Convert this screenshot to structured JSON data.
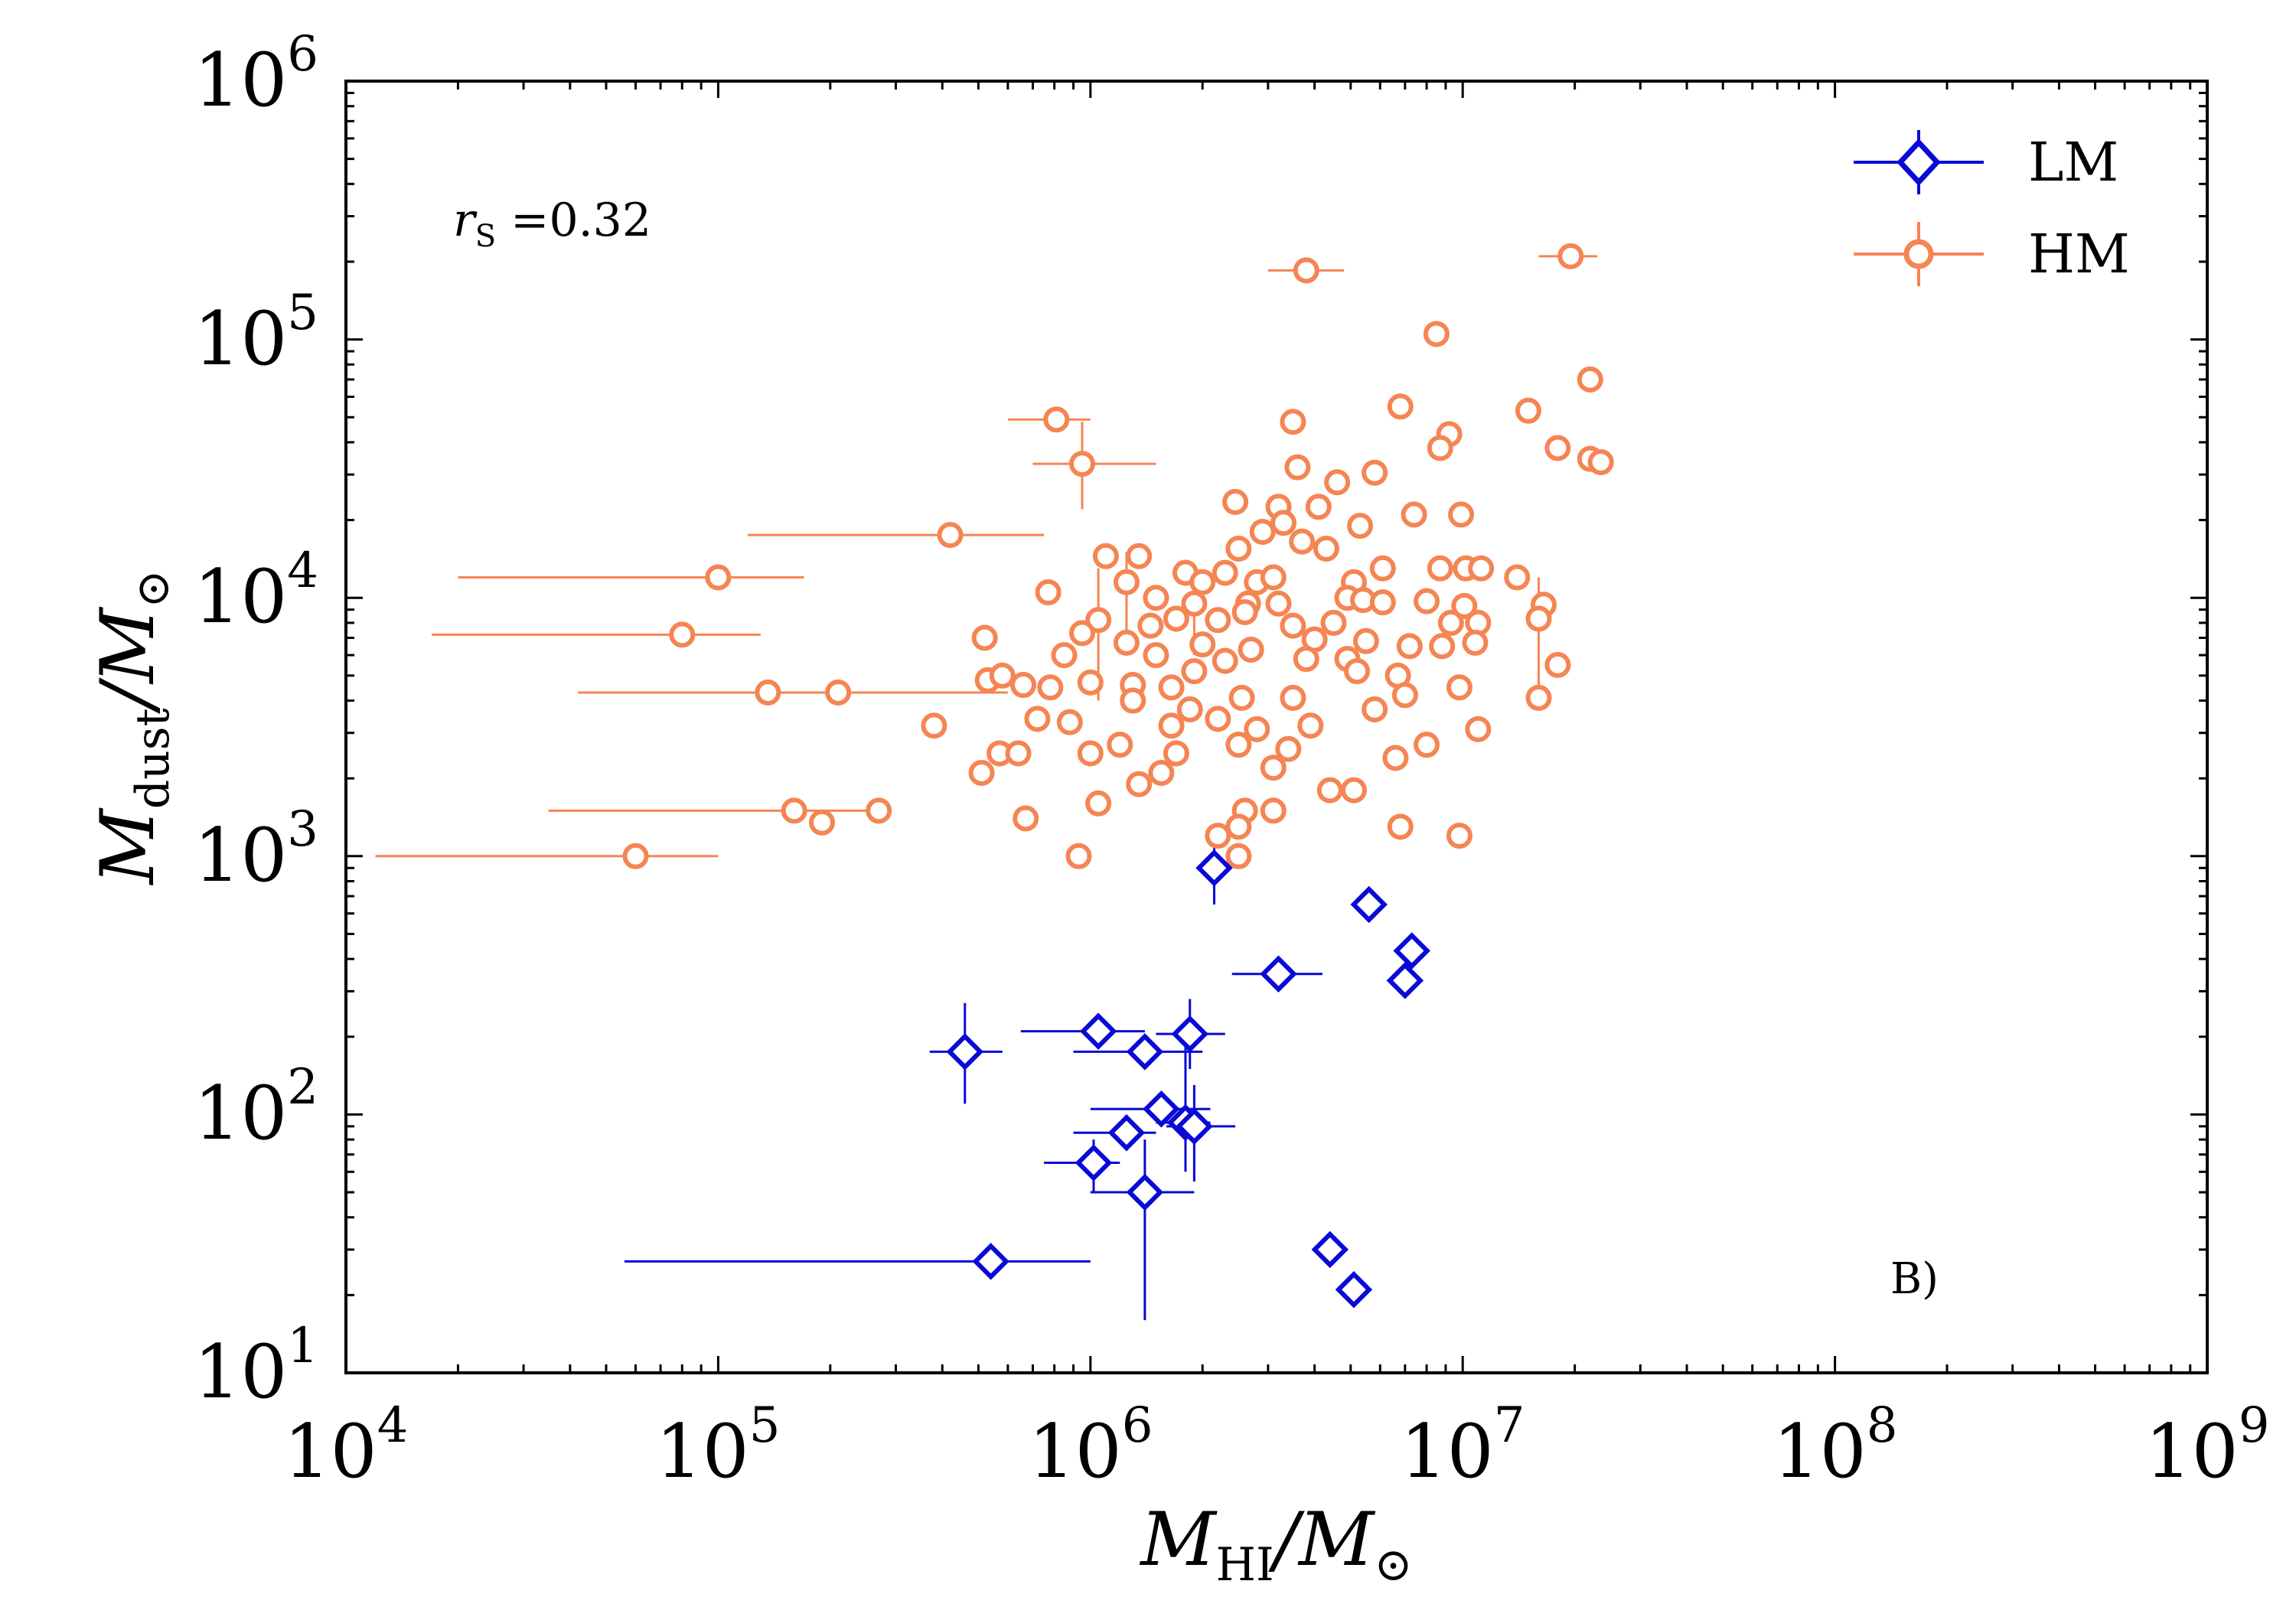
{
  "chart_data": {
    "type": "scatter",
    "x_scale": "log",
    "y_scale": "log",
    "xlim": [
      10000,
      1000000000
    ],
    "ylim": [
      10,
      1000000
    ],
    "xlabel": {
      "main": "M",
      "sub": "HI",
      "denom": "/M",
      "denom_sub": "⊙"
    },
    "ylabel": {
      "main": "M",
      "sub": "dust",
      "denom": "/M",
      "denom_sub": "⊙"
    },
    "x_ticks": [
      {
        "base": "10",
        "exp": "4"
      },
      {
        "base": "10",
        "exp": "5"
      },
      {
        "base": "10",
        "exp": "6"
      },
      {
        "base": "10",
        "exp": "7"
      },
      {
        "base": "10",
        "exp": "8"
      },
      {
        "base": "10",
        "exp": "9"
      }
    ],
    "y_ticks": [
      {
        "base": "10",
        "exp": "1"
      },
      {
        "base": "10",
        "exp": "2"
      },
      {
        "base": "10",
        "exp": "3"
      },
      {
        "base": "10",
        "exp": "4"
      },
      {
        "base": "10",
        "exp": "5"
      },
      {
        "base": "10",
        "exp": "6"
      }
    ],
    "legend_position": "top-right",
    "annotation": {
      "symbol": "r",
      "sub": "S",
      "text": " =0.32"
    },
    "panel_label": "B)",
    "series": [
      {
        "name": "LM",
        "marker": "diamond",
        "color": "#0a0ad6",
        "points": [
          {
            "x": 2150000,
            "y": 900,
            "yerr": [
              650,
              1200
            ]
          },
          {
            "x": 5600000,
            "y": 650
          },
          {
            "x": 7300000,
            "y": 430
          },
          {
            "x": 7000000,
            "y": 330
          },
          {
            "x": 3200000,
            "y": 350,
            "xerr": [
              2400000,
              4200000
            ]
          },
          {
            "x": 460000,
            "y": 175,
            "xerr": [
              370000,
              580000
            ],
            "yerr": [
              110,
              270
            ]
          },
          {
            "x": 1050000,
            "y": 210,
            "xerr": [
              650000,
              1400000
            ]
          },
          {
            "x": 1400000,
            "y": 175,
            "xerr": [
              900000,
              2000000
            ]
          },
          {
            "x": 1850000,
            "y": 205,
            "xerr": [
              1500000,
              2300000
            ],
            "yerr": [
              150,
              280
            ]
          },
          {
            "x": 1550000,
            "y": 105,
            "xerr": [
              1000000,
              2100000
            ]
          },
          {
            "x": 1250000,
            "y": 85,
            "xerr": [
              900000,
              1500000
            ]
          },
          {
            "x": 1800000,
            "y": 93,
            "xerr": [
              1500000,
              2100000
            ],
            "yerr": [
              60,
              200
            ]
          },
          {
            "x": 1900000,
            "y": 90,
            "xerr": [
              1600000,
              2450000
            ],
            "yerr": [
              55,
              130
            ]
          },
          {
            "x": 1020000,
            "y": 65,
            "xerr": [
              750000,
              1200000
            ],
            "yerr": [
              50,
              80
            ]
          },
          {
            "x": 1400000,
            "y": 50,
            "xerr": [
              1000000,
              1900000
            ],
            "yerr": [
              16,
              80
            ]
          },
          {
            "x": 540000,
            "y": 27,
            "xerr": [
              56000,
              1000000
            ]
          },
          {
            "x": 4400000,
            "y": 30
          },
          {
            "x": 5100000,
            "y": 21
          }
        ]
      },
      {
        "name": "HM",
        "marker": "circle",
        "color": "#f58553",
        "points": [
          {
            "x": 3800000,
            "y": 185000,
            "xerr": [
              3000000,
              4800000
            ]
          },
          {
            "x": 19500000,
            "y": 210000,
            "xerr": [
              16000000,
              23000000
            ]
          },
          {
            "x": 8500000,
            "y": 105000
          },
          {
            "x": 22000000,
            "y": 70000
          },
          {
            "x": 6800000,
            "y": 55000
          },
          {
            "x": 15000000,
            "y": 53000
          },
          {
            "x": 9200000,
            "y": 43000
          },
          {
            "x": 8700000,
            "y": 38000
          },
          {
            "x": 18000000,
            "y": 38000
          },
          {
            "x": 22000000,
            "y": 34500
          },
          {
            "x": 23500000,
            "y": 33500
          },
          {
            "x": 3500000,
            "y": 48000
          },
          {
            "x": 810000,
            "y": 49000,
            "xerr": [
              600000,
              1000000
            ]
          },
          {
            "x": 950000,
            "y": 33000,
            "xerr": [
              700000,
              1500000
            ],
            "yerr": [
              22000,
              48000
            ]
          },
          {
            "x": 3600000,
            "y": 32000
          },
          {
            "x": 5800000,
            "y": 30500
          },
          {
            "x": 4600000,
            "y": 28000
          },
          {
            "x": 2450000,
            "y": 23500
          },
          {
            "x": 3200000,
            "y": 22500
          },
          {
            "x": 4100000,
            "y": 22500
          },
          {
            "x": 7400000,
            "y": 21000
          },
          {
            "x": 9900000,
            "y": 21000
          },
          {
            "x": 5300000,
            "y": 19000
          },
          {
            "x": 2900000,
            "y": 18000
          },
          {
            "x": 420000,
            "y": 17500,
            "xerr": [
              120000,
              750000
            ]
          },
          {
            "x": 3300000,
            "y": 19500
          },
          {
            "x": 1100000,
            "y": 14500
          },
          {
            "x": 1350000,
            "y": 14500
          },
          {
            "x": 2500000,
            "y": 15500
          },
          {
            "x": 3700000,
            "y": 16500
          },
          {
            "x": 4300000,
            "y": 15500
          },
          {
            "x": 1800000,
            "y": 12500
          },
          {
            "x": 2300000,
            "y": 12500
          },
          {
            "x": 6100000,
            "y": 13000
          },
          {
            "x": 8700000,
            "y": 13000
          },
          {
            "x": 10200000,
            "y": 13000
          },
          {
            "x": 11200000,
            "y": 13000
          },
          {
            "x": 14000000,
            "y": 12000
          },
          {
            "x": 100000,
            "y": 12000,
            "xerr": [
              20000,
              170000
            ]
          },
          {
            "x": 1250000,
            "y": 11500,
            "yerr": [
              6000,
              15000
            ]
          },
          {
            "x": 2000000,
            "y": 11500
          },
          {
            "x": 2800000,
            "y": 11500
          },
          {
            "x": 3100000,
            "y": 12000
          },
          {
            "x": 5100000,
            "y": 11500
          },
          {
            "x": 770000,
            "y": 10500
          },
          {
            "x": 1500000,
            "y": 10000
          },
          {
            "x": 1900000,
            "y": 9500,
            "yerr": [
              6000,
              12000
            ]
          },
          {
            "x": 2650000,
            "y": 9500
          },
          {
            "x": 3200000,
            "y": 9500
          },
          {
            "x": 4900000,
            "y": 10000
          },
          {
            "x": 5400000,
            "y": 9800
          },
          {
            "x": 6100000,
            "y": 9600
          },
          {
            "x": 8000000,
            "y": 9700
          },
          {
            "x": 10100000,
            "y": 9300
          },
          {
            "x": 16500000,
            "y": 9400
          },
          {
            "x": 16000000,
            "y": 8300,
            "yerr": [
              4000,
              12000
            ]
          },
          {
            "x": 1050000,
            "y": 8200,
            "yerr": [
              4000,
              13000
            ]
          },
          {
            "x": 1450000,
            "y": 7800
          },
          {
            "x": 1700000,
            "y": 8300
          },
          {
            "x": 2200000,
            "y": 8200
          },
          {
            "x": 2600000,
            "y": 8800
          },
          {
            "x": 3500000,
            "y": 7800
          },
          {
            "x": 4500000,
            "y": 8000
          },
          {
            "x": 9300000,
            "y": 8000
          },
          {
            "x": 11000000,
            "y": 8000
          },
          {
            "x": 80000,
            "y": 7200,
            "xerr": [
              17000,
              130000
            ]
          },
          {
            "x": 520000,
            "y": 7000
          },
          {
            "x": 950000,
            "y": 7300
          },
          {
            "x": 1250000,
            "y": 6700
          },
          {
            "x": 2000000,
            "y": 6600
          },
          {
            "x": 2700000,
            "y": 6300
          },
          {
            "x": 4000000,
            "y": 6900
          },
          {
            "x": 5500000,
            "y": 6800
          },
          {
            "x": 7200000,
            "y": 6500
          },
          {
            "x": 8800000,
            "y": 6500
          },
          {
            "x": 10800000,
            "y": 6700
          },
          {
            "x": 850000,
            "y": 6000
          },
          {
            "x": 1500000,
            "y": 6000
          },
          {
            "x": 2300000,
            "y": 5700
          },
          {
            "x": 3800000,
            "y": 5800
          },
          {
            "x": 4900000,
            "y": 5800
          },
          {
            "x": 1900000,
            "y": 5200
          },
          {
            "x": 5200000,
            "y": 5200
          },
          {
            "x": 6700000,
            "y": 5000
          },
          {
            "x": 18000000,
            "y": 5500
          },
          {
            "x": 530000,
            "y": 4800
          },
          {
            "x": 580000,
            "y": 5000
          },
          {
            "x": 660000,
            "y": 4600
          },
          {
            "x": 780000,
            "y": 4500
          },
          {
            "x": 1000000,
            "y": 4700
          },
          {
            "x": 1300000,
            "y": 4600
          },
          {
            "x": 1650000,
            "y": 4500
          },
          {
            "x": 2550000,
            "y": 4100
          },
          {
            "x": 3500000,
            "y": 4100
          },
          {
            "x": 7000000,
            "y": 4200
          },
          {
            "x": 9800000,
            "y": 4500
          },
          {
            "x": 16000000,
            "y": 4100
          },
          {
            "x": 136000,
            "y": 4300,
            "xerr": [
              42000,
              600000
            ]
          },
          {
            "x": 210000,
            "y": 4300
          },
          {
            "x": 1300000,
            "y": 4000
          },
          {
            "x": 1850000,
            "y": 3700
          },
          {
            "x": 5800000,
            "y": 3700
          },
          {
            "x": 720000,
            "y": 3400
          },
          {
            "x": 880000,
            "y": 3300
          },
          {
            "x": 1650000,
            "y": 3200
          },
          {
            "x": 2200000,
            "y": 3400
          },
          {
            "x": 2800000,
            "y": 3100
          },
          {
            "x": 3900000,
            "y": 3200
          },
          {
            "x": 380000,
            "y": 3200
          },
          {
            "x": 11000000,
            "y": 3100
          },
          {
            "x": 1200000,
            "y": 2700
          },
          {
            "x": 2500000,
            "y": 2700
          },
          {
            "x": 3400000,
            "y": 2600
          },
          {
            "x": 8000000,
            "y": 2700
          },
          {
            "x": 6600000,
            "y": 2400
          },
          {
            "x": 570000,
            "y": 2500
          },
          {
            "x": 640000,
            "y": 2500
          },
          {
            "x": 1000000,
            "y": 2500
          },
          {
            "x": 1700000,
            "y": 2500
          },
          {
            "x": 510000,
            "y": 2100
          },
          {
            "x": 1550000,
            "y": 2100
          },
          {
            "x": 3100000,
            "y": 2200
          },
          {
            "x": 1350000,
            "y": 1900
          },
          {
            "x": 4400000,
            "y": 1800
          },
          {
            "x": 5100000,
            "y": 1800
          },
          {
            "x": 1050000,
            "y": 1600
          },
          {
            "x": 160000,
            "y": 1500,
            "xerr": [
              35000,
              250000
            ]
          },
          {
            "x": 270000,
            "y": 1500
          },
          {
            "x": 2600000,
            "y": 1500
          },
          {
            "x": 3100000,
            "y": 1500
          },
          {
            "x": 190000,
            "y": 1350
          },
          {
            "x": 670000,
            "y": 1400
          },
          {
            "x": 2500000,
            "y": 1300
          },
          {
            "x": 6800000,
            "y": 1300
          },
          {
            "x": 2200000,
            "y": 1200
          },
          {
            "x": 9800000,
            "y": 1200
          },
          {
            "x": 60000,
            "y": 1000,
            "xerr": [
              12000,
              100000
            ]
          },
          {
            "x": 930000,
            "y": 1000
          },
          {
            "x": 2500000,
            "y": 1000
          }
        ]
      }
    ]
  }
}
